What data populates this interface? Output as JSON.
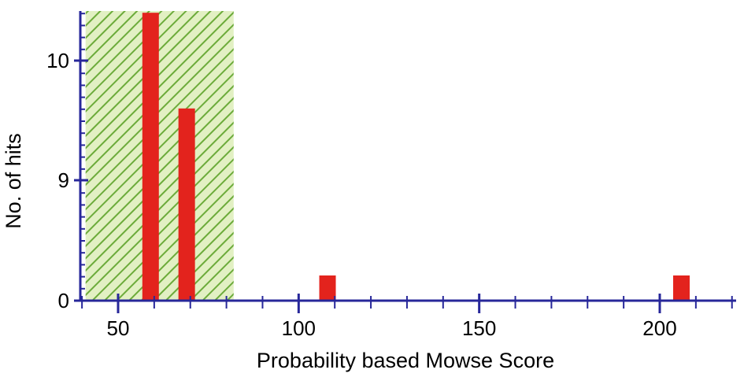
{
  "chart_data": {
    "type": "bar",
    "title": "",
    "xlabel": "Probability based Mowse Score",
    "ylabel": "No. of hits",
    "x_ticks": [
      50,
      100,
      150,
      200
    ],
    "y_ticks": [
      {
        "label": "0",
        "value": 0
      },
      {
        "label": "9",
        "value": 9
      },
      {
        "label": "10",
        "value": 10
      }
    ],
    "xlim": [
      40,
      222
    ],
    "y_axis_note": "broken axis: 0 then 9 and 10",
    "threshold_region": {
      "x_start": 41,
      "x_end": 82,
      "meaning": "scores below significance threshold (hatched green)"
    },
    "bars": [
      {
        "x": 59,
        "value": 10.4
      },
      {
        "x": 69,
        "value": 9.6
      },
      {
        "x": 108,
        "value": 1
      },
      {
        "x": 206,
        "value": 1
      }
    ],
    "colors": {
      "bar": "#e3231d",
      "axis": "#27279a",
      "hatch_light": "#cfe6a3",
      "hatch_dark": "#6cab3a"
    },
    "grid": false,
    "legend": "none"
  }
}
